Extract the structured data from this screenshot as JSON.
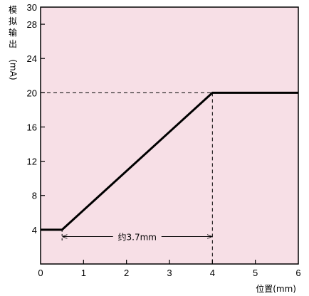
{
  "chart_data": {
    "type": "line",
    "xlabel": "位置(mm)",
    "ylabel": "模拟输出(mA)",
    "xlim": [
      0,
      6
    ],
    "ylim": [
      0,
      30
    ],
    "x_ticks": [
      "0",
      "1",
      "2",
      "3",
      "4",
      "5",
      "6"
    ],
    "y_ticks": [
      "4",
      "8",
      "12",
      "16",
      "20",
      "24",
      "28",
      "30"
    ],
    "grid": false,
    "background_color": "#f7dfe6",
    "line_color": "#000000",
    "series": [
      {
        "x": [
          0,
          0.5,
          4,
          6
        ],
        "y": [
          4,
          4,
          20,
          20
        ]
      }
    ],
    "reference_lines": {
      "horizontal_y": 20,
      "vertical_x": [
        0.5,
        4
      ]
    },
    "annotation": {
      "text": "约3.7mm",
      "x_start": 0.5,
      "x_end": 4,
      "y": 3.2
    }
  }
}
